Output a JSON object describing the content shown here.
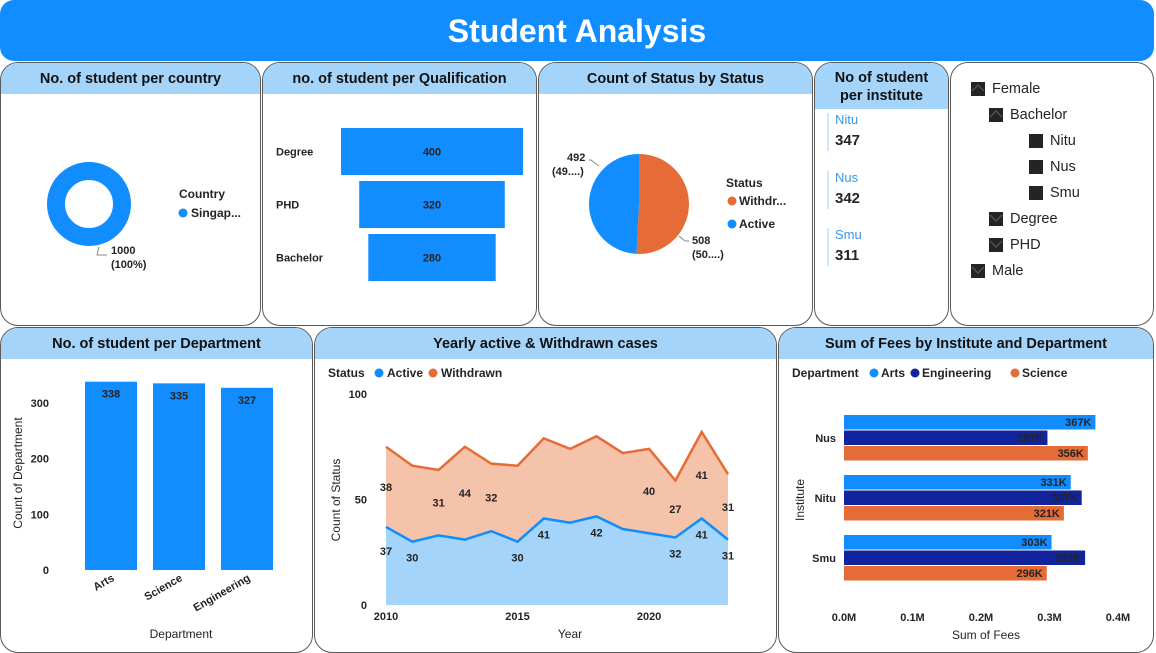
{
  "header": {
    "title": "Student Analysis"
  },
  "colors": {
    "blue": "#118DFF",
    "darkblue": "#12239E",
    "orange": "#E66C37",
    "lightblue": "#A5D4FB",
    "lightorange": "#F4C3AA"
  },
  "country_card": {
    "title": "No. of student per country",
    "legend_title": "Country",
    "legend_item": "Singap...",
    "label_value": "1000",
    "label_pct": "(100%)"
  },
  "qual_card": {
    "title": "no. of student per Qualification"
  },
  "status_card": {
    "title": "Count of Status by Status",
    "legend_title": "Status",
    "legend_items": [
      "Withdr...",
      "Active"
    ],
    "labels": [
      {
        "value": "492",
        "pct": "(49....)"
      },
      {
        "value": "508",
        "pct": "(50....)"
      }
    ]
  },
  "institute_card": {
    "title_line1": "No of student",
    "title_line2": "per institute",
    "items": [
      {
        "label": "Nitu",
        "value": "347"
      },
      {
        "label": "Nus",
        "value": "342"
      },
      {
        "label": "Smu",
        "value": "311"
      }
    ]
  },
  "tree": {
    "rows": [
      {
        "label": "Female",
        "chevron": "up",
        "level": 0
      },
      {
        "label": "Bachelor",
        "chevron": "up",
        "level": 1
      },
      {
        "label": "Nitu",
        "chevron": "none",
        "level": 2
      },
      {
        "label": "Nus",
        "chevron": "none",
        "level": 2
      },
      {
        "label": "Smu",
        "chevron": "none",
        "level": 2
      },
      {
        "label": "Degree",
        "chevron": "down",
        "level": 1
      },
      {
        "label": "PHD",
        "chevron": "down",
        "level": 1
      },
      {
        "label": "Male",
        "chevron": "down",
        "level": 0
      }
    ]
  },
  "dept_card": {
    "title": "No. of student per Department"
  },
  "yearly_card": {
    "title": "Yearly active & Withdrawn cases"
  },
  "fees_card": {
    "title": "Sum of Fees by Institute and Department"
  },
  "chart_data": [
    {
      "type": "pie",
      "variant": "donut",
      "title": "No. of student per country",
      "categories": [
        "Singap..."
      ],
      "values": [
        1000
      ],
      "legend_title": "Country"
    },
    {
      "type": "bar",
      "orientation": "funnel",
      "title": "no. of student per Qualification",
      "categories": [
        "Degree",
        "PHD",
        "Bachelor"
      ],
      "values": [
        400,
        320,
        280
      ]
    },
    {
      "type": "pie",
      "title": "Count of Status by Status",
      "categories": [
        "Withdr...",
        "Active"
      ],
      "values": [
        508,
        492
      ],
      "legend_title": "Status"
    },
    {
      "type": "bar",
      "title": "No. of student per Department",
      "categories": [
        "Arts",
        "Science",
        "Engineering"
      ],
      "values": [
        338,
        335,
        327
      ],
      "xlabel": "Department",
      "ylabel": "Count of Department",
      "ylim": [
        0,
        350
      ],
      "yticks": [
        0,
        100,
        200,
        300
      ]
    },
    {
      "type": "area",
      "title": "Yearly active & Withdrawn cases",
      "xlabel": "Year",
      "ylabel": "Count of Status",
      "legend_title": "Status",
      "x": [
        2010,
        2011,
        2012,
        2013,
        2014,
        2015,
        2016,
        2017,
        2018,
        2019,
        2020,
        2021,
        2022,
        2023
      ],
      "xticks": [
        2010,
        2015,
        2020
      ],
      "yticks": [
        0,
        50,
        100
      ],
      "ylim": [
        0,
        100
      ],
      "series": [
        {
          "name": "Active",
          "values": [
            37,
            30,
            33,
            31,
            35,
            30,
            41,
            39,
            42,
            36,
            34,
            32,
            41,
            31
          ]
        },
        {
          "name": "Withdrawn",
          "values": [
            38,
            36,
            31,
            44,
            32,
            36,
            38,
            35,
            38,
            36,
            40,
            27,
            41,
            31
          ]
        }
      ],
      "labels": {
        "Active": [
          {
            "x": 2010,
            "text": "37"
          },
          {
            "x": 2011,
            "text": "30"
          },
          {
            "x": 2015,
            "text": "30"
          },
          {
            "x": 2016,
            "text": "41"
          },
          {
            "x": 2018,
            "text": "42"
          },
          {
            "x": 2021,
            "text": "32"
          },
          {
            "x": 2022,
            "text": "41"
          },
          {
            "x": 2023,
            "text": "31"
          }
        ],
        "Withdrawn": [
          {
            "x": 2010,
            "text": "38"
          },
          {
            "x": 2012,
            "text": "31"
          },
          {
            "x": 2013,
            "text": "44"
          },
          {
            "x": 2014,
            "text": "32"
          },
          {
            "x": 2020,
            "text": "40"
          },
          {
            "x": 2021,
            "text": "27"
          },
          {
            "x": 2022,
            "text": "41"
          },
          {
            "x": 2023,
            "text": "31"
          }
        ]
      }
    },
    {
      "type": "bar",
      "orientation": "horizontal",
      "title": "Sum of Fees by Institute and Department",
      "categories": [
        "Nus",
        "Nitu",
        "Smu"
      ],
      "xlabel": "Sum of Fees",
      "ylabel": "Institute",
      "legend_title": "Department",
      "xlim": [
        0,
        400000
      ],
      "xticks": [
        "0.0M",
        "0.1M",
        "0.2M",
        "0.3M",
        "0.4M"
      ],
      "series": [
        {
          "name": "Arts",
          "values": [
            367000,
            331000,
            303000
          ],
          "labels": [
            "367K",
            "331K",
            "303K"
          ]
        },
        {
          "name": "Engineering",
          "values": [
            297000,
            347000,
            352000
          ],
          "labels": [
            "297K",
            "347K",
            "352K"
          ]
        },
        {
          "name": "Science",
          "values": [
            356000,
            321000,
            296000
          ],
          "labels": [
            "356K",
            "321K",
            "296K"
          ]
        }
      ]
    }
  ]
}
